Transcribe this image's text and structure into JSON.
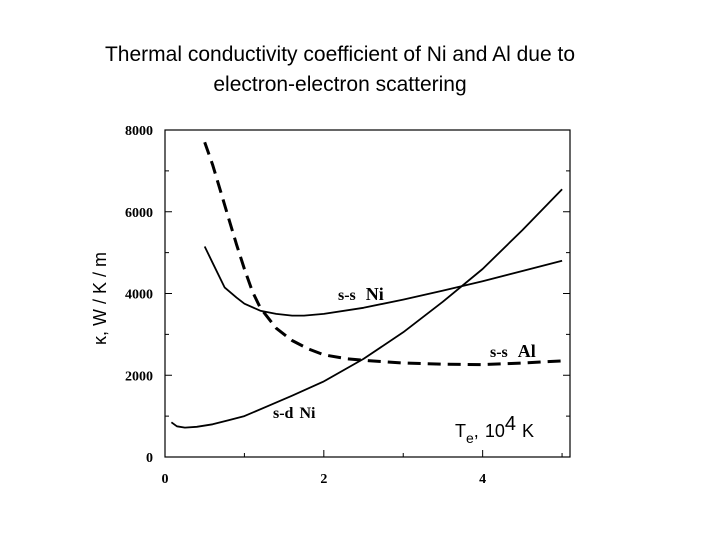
{
  "title": {
    "line1": "Thermal conductivity coefficient of Ni and Al due to",
    "line2": "electron-electron scattering"
  },
  "chart_data": {
    "type": "line",
    "xlabel": "Te, 10⁴ K",
    "xlabel_parts": {
      "main": "T",
      "sub": "e",
      "comma": ",",
      "base": "10",
      "exp": "4",
      "unit": "K"
    },
    "ylabel": "κ, W / K / m",
    "xlim": [
      0,
      5.1
    ],
    "ylim": [
      0,
      8000
    ],
    "xticks": [
      0,
      2,
      4
    ],
    "yticks": [
      0,
      2000,
      4000,
      6000,
      8000
    ],
    "grid": false,
    "series": [
      {
        "name": "s-s Al",
        "label_main": "s-s",
        "label_metal": "Al",
        "dash": true,
        "color": "#000000",
        "x": [
          0.5,
          0.6,
          0.7,
          0.8,
          0.9,
          1.0,
          1.1,
          1.2,
          1.4,
          1.6,
          1.8,
          2.0,
          2.3,
          2.6,
          3.0,
          3.5,
          4.0,
          4.5,
          5.0
        ],
        "y": [
          7700,
          7150,
          6500,
          5850,
          5200,
          4600,
          4050,
          3650,
          3150,
          2850,
          2650,
          2500,
          2400,
          2350,
          2300,
          2270,
          2260,
          2300,
          2350
        ]
      },
      {
        "name": "s-s Ni",
        "label_main": "s-s",
        "label_metal": "Ni",
        "dash": false,
        "color": "#000000",
        "x": [
          0.5,
          0.6,
          0.75,
          0.9,
          1.0,
          1.2,
          1.4,
          1.6,
          1.75,
          2.0,
          2.5,
          3.0,
          3.5,
          4.0,
          4.5,
          5.0
        ],
        "y": [
          5150,
          4750,
          4150,
          3900,
          3750,
          3580,
          3500,
          3460,
          3460,
          3500,
          3650,
          3850,
          4070,
          4300,
          4550,
          4800
        ]
      },
      {
        "name": "s-d Ni",
        "label_main": "s-d",
        "label_metal": "Ni",
        "dash": false,
        "color": "#000000",
        "x": [
          0.08,
          0.15,
          0.25,
          0.4,
          0.6,
          0.8,
          1.0,
          1.3,
          1.6,
          2.0,
          2.5,
          3.0,
          3.5,
          4.0,
          4.5,
          5.0
        ],
        "y": [
          850,
          750,
          720,
          740,
          800,
          900,
          1000,
          1250,
          1500,
          1850,
          2400,
          3050,
          3800,
          4600,
          5550,
          6550
        ]
      }
    ]
  }
}
